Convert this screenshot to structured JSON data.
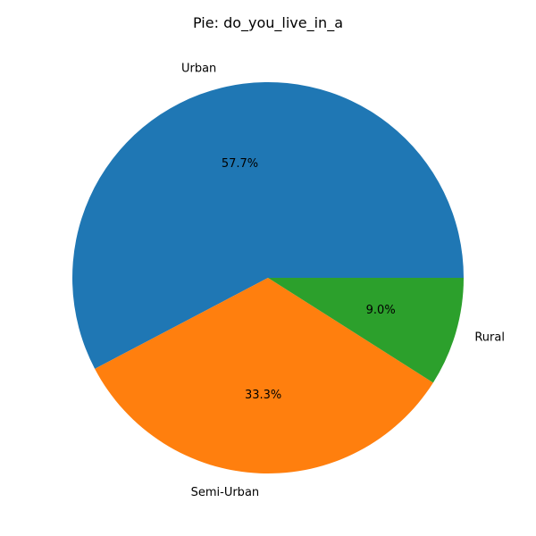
{
  "chart_data": {
    "type": "pie",
    "title": "Pie: do_you_live_in_a",
    "start_angle": "0 degrees (3 o'clock)",
    "direction": "counterclockwise",
    "slices": [
      {
        "label": "Urban",
        "value": 57.7,
        "pct_label": "57.7%",
        "color": "#1f77b4"
      },
      {
        "label": "Semi-Urban",
        "value": 33.3,
        "pct_label": "33.3%",
        "color": "#ff7f0e"
      },
      {
        "label": "Rural",
        "value": 9.0,
        "pct_label": "9.0%",
        "color": "#2ca02c"
      }
    ]
  }
}
